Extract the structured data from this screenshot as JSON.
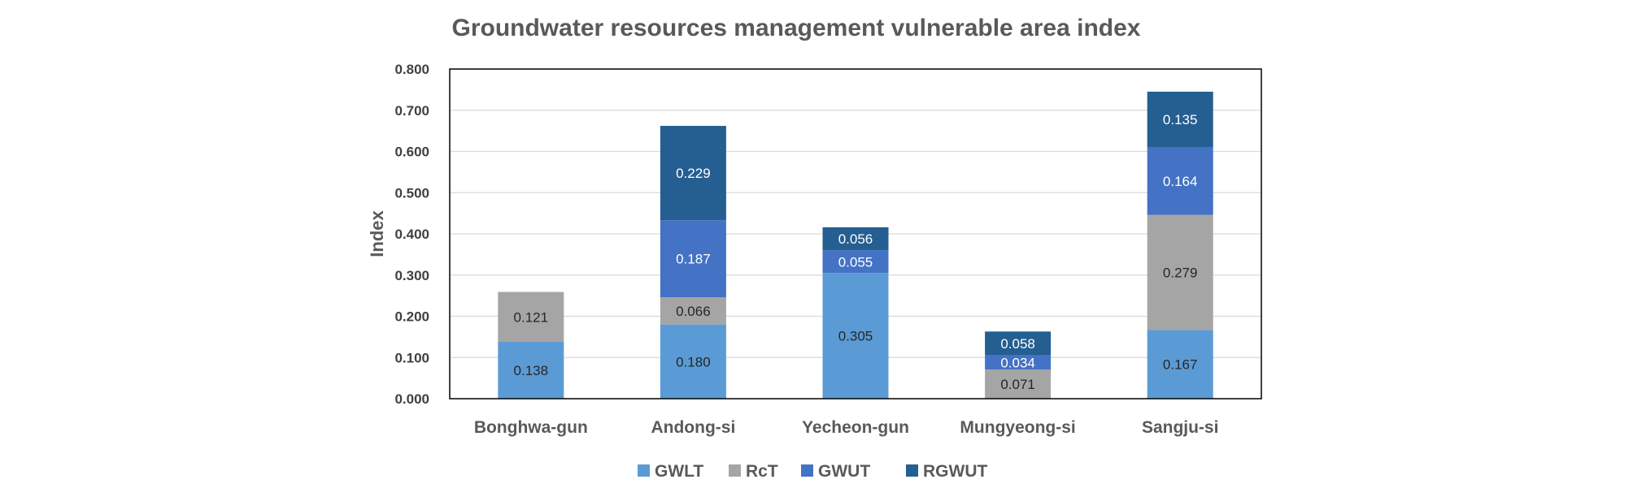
{
  "chart_data": {
    "type": "bar",
    "stacked": true,
    "title": "Groundwater resources management vulnerable area index",
    "xlabel": "",
    "ylabel": "Index",
    "ylim": [
      0,
      0.8
    ],
    "yticks": [
      "0.000",
      "0.100",
      "0.200",
      "0.300",
      "0.400",
      "0.500",
      "0.600",
      "0.700",
      "0.800"
    ],
    "grid": true,
    "legend_position": "bottom",
    "categories": [
      "Bonghwa-gun",
      "Andong-si",
      "Yecheon-gun",
      "Mungyeong-si",
      "Sangju-si"
    ],
    "series": [
      {
        "name": "GWLT",
        "color": "#5B9BD5",
        "label_color": "#262626",
        "values": [
          0.138,
          0.18,
          0.305,
          0.0,
          0.167
        ],
        "labels": [
          "0.138",
          "0.180",
          "0.305",
          "",
          "0.167"
        ]
      },
      {
        "name": "RcT",
        "color": "#A5A5A5",
        "label_color": "#262626",
        "values": [
          0.121,
          0.066,
          0.0,
          0.071,
          0.279
        ],
        "labels": [
          "0.121",
          "0.066",
          "",
          "0.071",
          "0.279"
        ]
      },
      {
        "name": "GWUT",
        "color": "#4472C4",
        "label_color": "#FFFFFF",
        "values": [
          0.0,
          0.187,
          0.055,
          0.034,
          0.164
        ],
        "labels": [
          "",
          "0.187",
          "0.055",
          "0.034",
          "0.164"
        ]
      },
      {
        "name": "RGWUT",
        "color": "#255E91",
        "label_color": "#FFFFFF",
        "values": [
          0.0,
          0.229,
          0.056,
          0.058,
          0.135
        ],
        "labels": [
          "",
          "0.229",
          "0.056",
          "0.058",
          "0.135"
        ]
      }
    ]
  }
}
